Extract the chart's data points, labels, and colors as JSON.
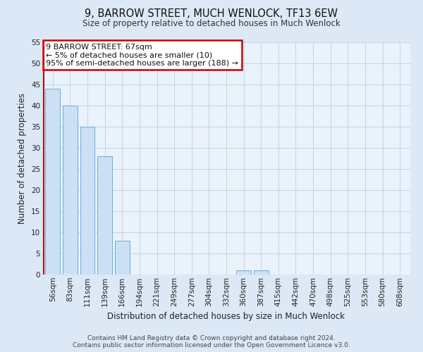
{
  "title": "9, BARROW STREET, MUCH WENLOCK, TF13 6EW",
  "subtitle": "Size of property relative to detached houses in Much Wenlock",
  "xlabel": "Distribution of detached houses by size in Much Wenlock",
  "ylabel": "Number of detached properties",
  "bar_labels": [
    "56sqm",
    "83sqm",
    "111sqm",
    "139sqm",
    "166sqm",
    "194sqm",
    "221sqm",
    "249sqm",
    "277sqm",
    "304sqm",
    "332sqm",
    "360sqm",
    "387sqm",
    "415sqm",
    "442sqm",
    "470sqm",
    "498sqm",
    "525sqm",
    "553sqm",
    "580sqm",
    "608sqm"
  ],
  "bar_values": [
    44,
    40,
    35,
    28,
    8,
    0,
    0,
    0,
    0,
    0,
    0,
    1,
    1,
    0,
    0,
    0,
    0,
    0,
    0,
    0,
    0
  ],
  "bar_color": "#cce0f5",
  "bar_edge_color": "#6aaed6",
  "annotation_box_edge_color": "#cc0000",
  "annotation_text_line1": "9 BARROW STREET: 67sqm",
  "annotation_text_line2": "← 5% of detached houses are smaller (10)",
  "annotation_text_line3": "95% of semi-detached houses are larger (188) →",
  "red_line_x": -0.5,
  "ylim": [
    0,
    55
  ],
  "yticks": [
    0,
    5,
    10,
    15,
    20,
    25,
    30,
    35,
    40,
    45,
    50,
    55
  ],
  "footer_line1": "Contains HM Land Registry data © Crown copyright and database right 2024.",
  "footer_line2": "Contains public sector information licensed under the Open Government Licence v3.0.",
  "background_color": "#dce8f5",
  "plot_background_color": "#eaf2fb",
  "grid_color": "#b8d0e8",
  "title_fontsize": 10.5,
  "subtitle_fontsize": 8.5,
  "axis_label_fontsize": 8.5,
  "tick_fontsize": 7.5,
  "annotation_fontsize": 8,
  "footer_fontsize": 6.5
}
